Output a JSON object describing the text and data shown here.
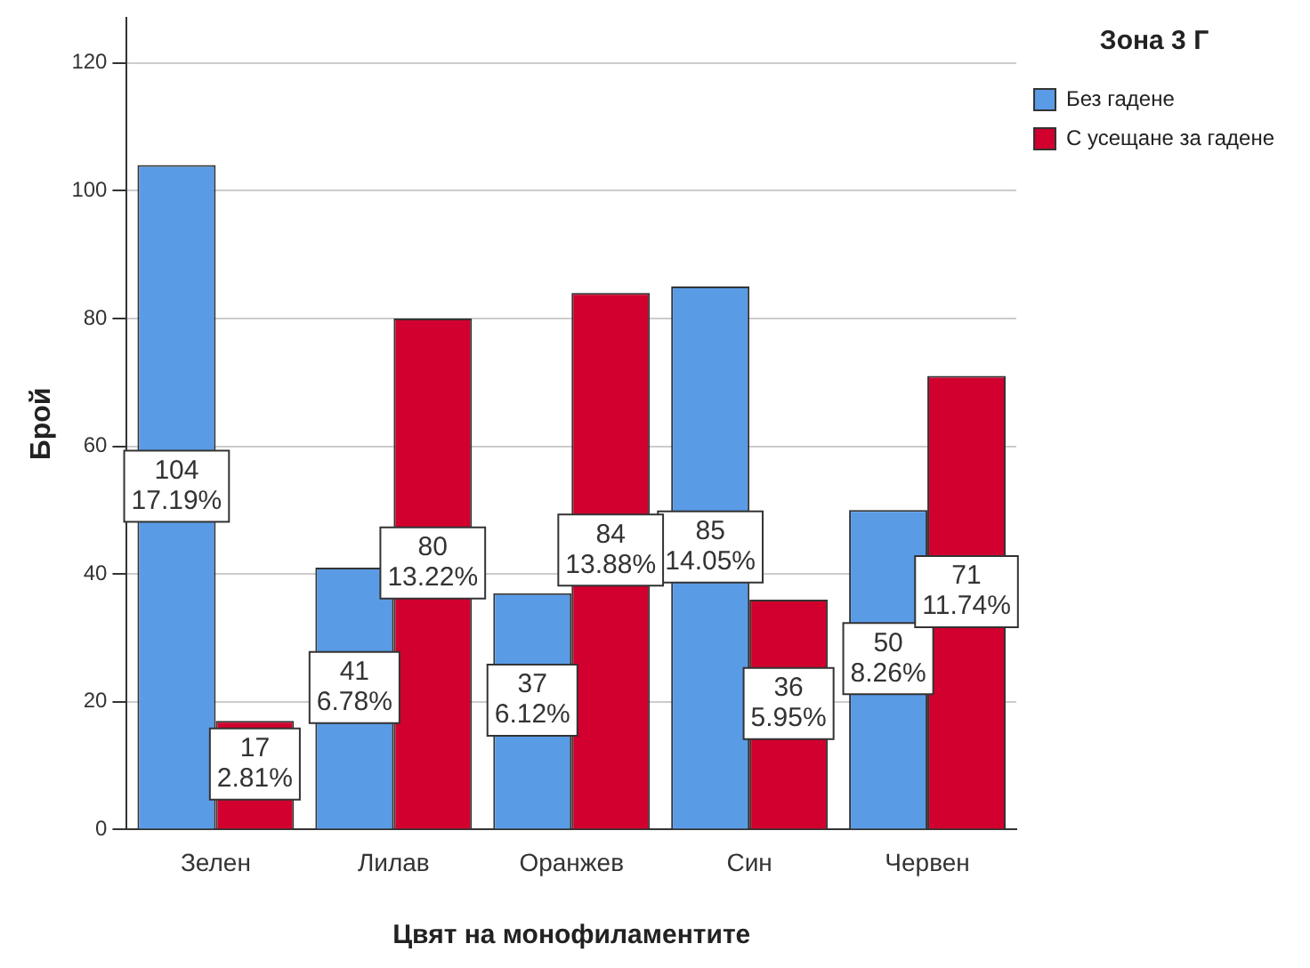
{
  "chart_data": {
    "type": "bar",
    "xlabel": "Цвят на монофиламентите",
    "ylabel": "Брой",
    "legend_title": "Зона 3 Г",
    "categories": [
      "Зелен",
      "Лилав",
      "Оранжев",
      "Син",
      "Червен"
    ],
    "series": [
      {
        "name": "Без гадене",
        "color": "#5a9be6",
        "values": [
          104,
          41,
          37,
          85,
          50
        ],
        "value_labels": [
          "104\n17.19%",
          "41\n6.78%",
          "37\n6.12%",
          "85\n14.05%",
          "50\n8.26%"
        ]
      },
      {
        "name": "С усещане за гадене",
        "color": "#d1002e",
        "values": [
          17,
          80,
          84,
          36,
          71
        ],
        "value_labels": [
          "17\n2.81%",
          "80\n13.22%",
          "84\n13.88%",
          "36\n5.95%",
          "71\n11.74%"
        ]
      }
    ],
    "ylim": [
      0,
      127
    ],
    "yticks": [
      0,
      20,
      40,
      60,
      80,
      100,
      120
    ],
    "grid": "y",
    "legend": "top right"
  }
}
